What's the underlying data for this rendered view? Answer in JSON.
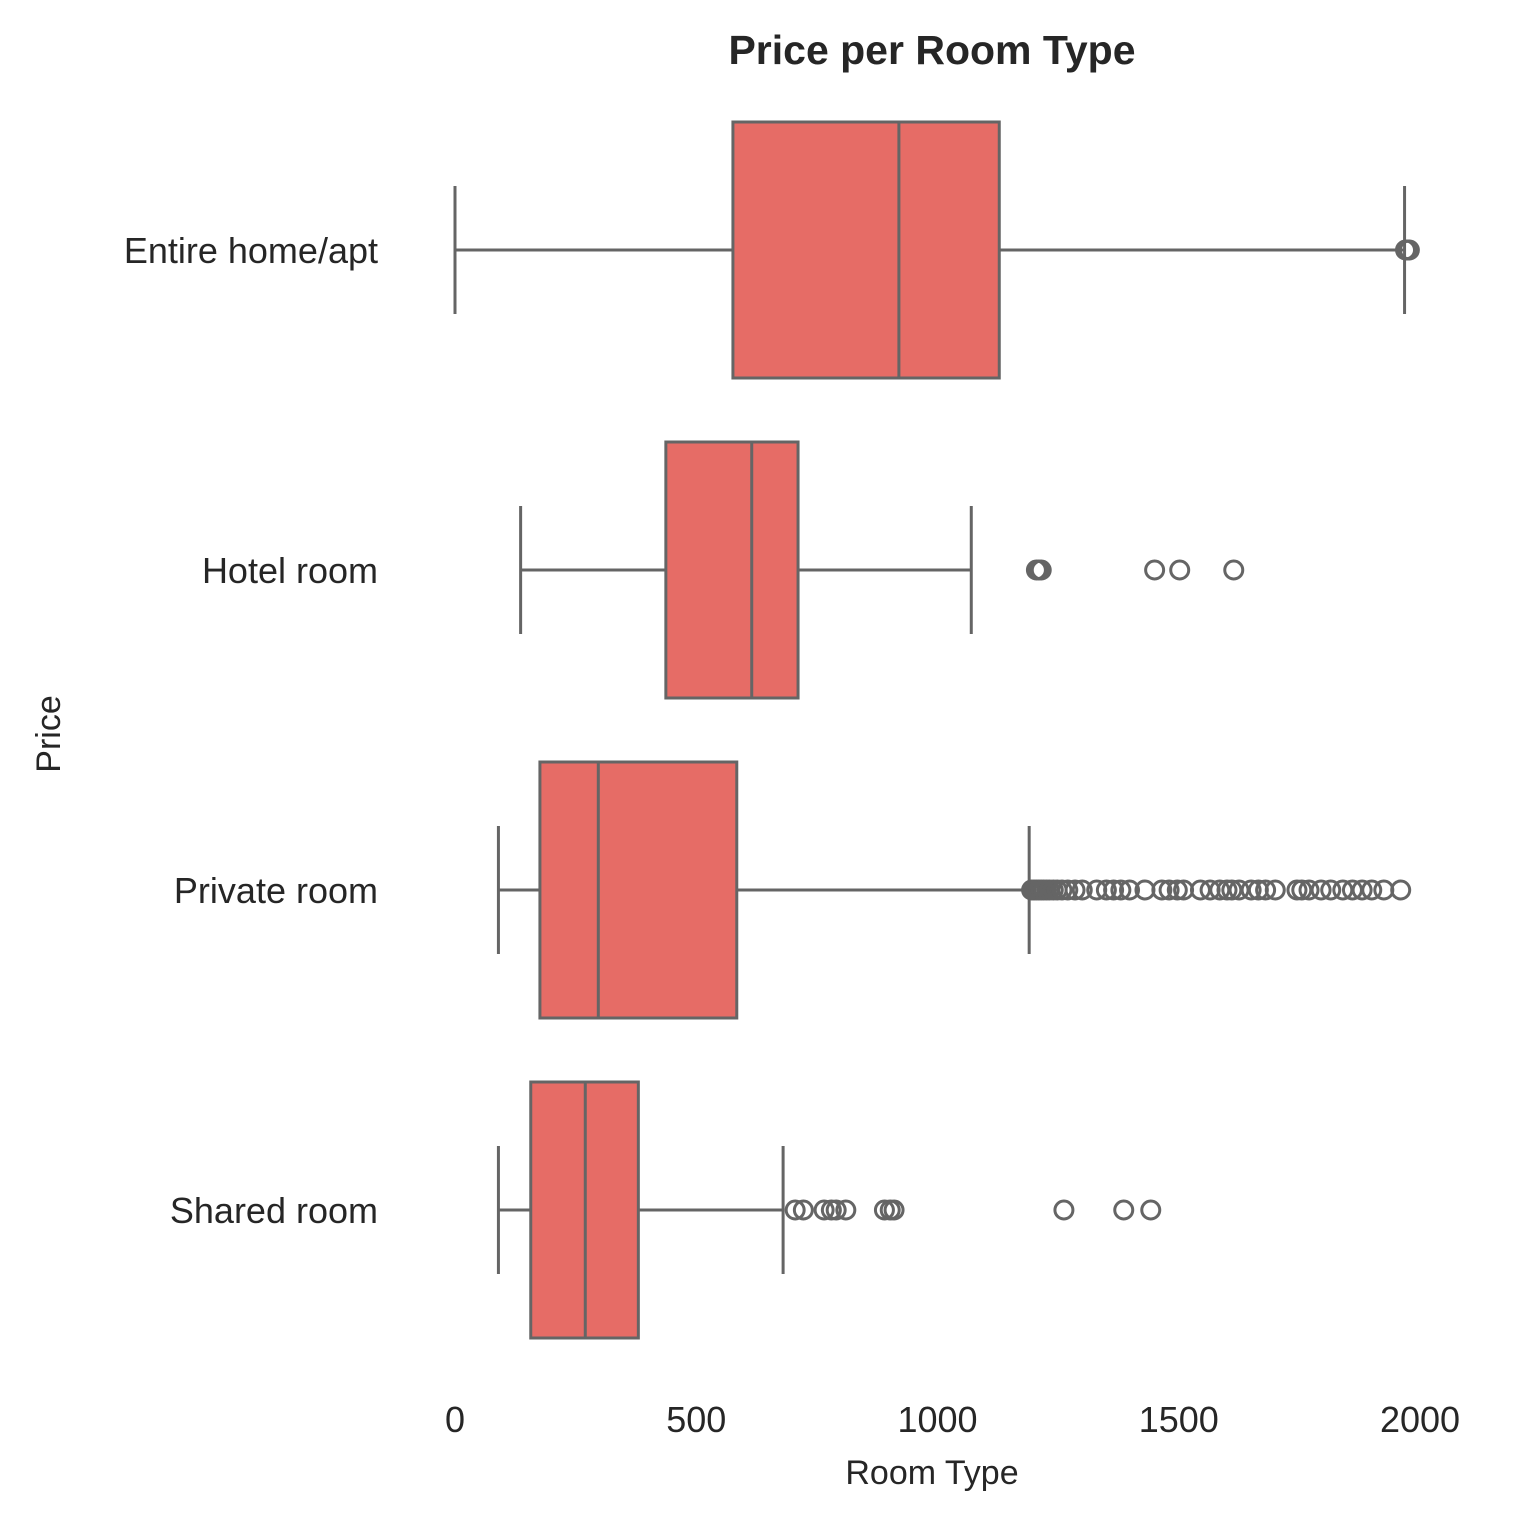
{
  "chart_data": {
    "type": "boxplot",
    "orientation": "horizontal",
    "title": "Price per Room Type",
    "xlabel": "Room Type",
    "ylabel": "Price",
    "xlim": [
      0,
      2000
    ],
    "xticks": [
      "0",
      "500",
      "1000",
      "1500",
      "2000"
    ],
    "xtick_values": [
      0,
      500,
      1000,
      1500,
      2000
    ],
    "grid": false,
    "legend": "none",
    "colors": {
      "box_fill": "#e66c66",
      "line": "#656565"
    },
    "categories": [
      "Entire home/apt",
      "Hotel room",
      "Private room",
      "Shared room"
    ],
    "boxes": [
      {
        "category": "Entire home/apt",
        "whisker_low": 0,
        "q1": 576,
        "median": 920,
        "q3": 1128,
        "whisker_high": 1968,
        "outliers": [
          1970,
          1972,
          1975,
          1978
        ]
      },
      {
        "category": "Hotel room",
        "whisker_low": 136,
        "q1": 437,
        "median": 615,
        "q3": 711,
        "whisker_high": 1070,
        "outliers": [
          1205,
          1210,
          1215,
          1450,
          1502,
          1614
        ]
      },
      {
        "category": "Private room",
        "whisker_low": 90,
        "q1": 176,
        "median": 297,
        "q3": 584,
        "whisker_high": 1190,
        "outliers": [
          1195,
          1200,
          1205,
          1210,
          1215,
          1220,
          1226,
          1232,
          1240,
          1248,
          1258,
          1270,
          1285,
          1300,
          1330,
          1350,
          1365,
          1380,
          1398,
          1430,
          1465,
          1480,
          1497,
          1510,
          1545,
          1565,
          1585,
          1600,
          1610,
          1625,
          1650,
          1665,
          1680,
          1700,
          1745,
          1755,
          1770,
          1795,
          1815,
          1840,
          1860,
          1880,
          1900,
          1925,
          1960
        ]
      },
      {
        "category": "Shared room",
        "whisker_low": 90,
        "q1": 157,
        "median": 270,
        "q3": 380,
        "whisker_high": 680,
        "outliers": [
          705,
          722,
          765,
          780,
          790,
          810,
          890,
          902,
          910,
          1262,
          1386,
          1442
        ]
      }
    ]
  }
}
